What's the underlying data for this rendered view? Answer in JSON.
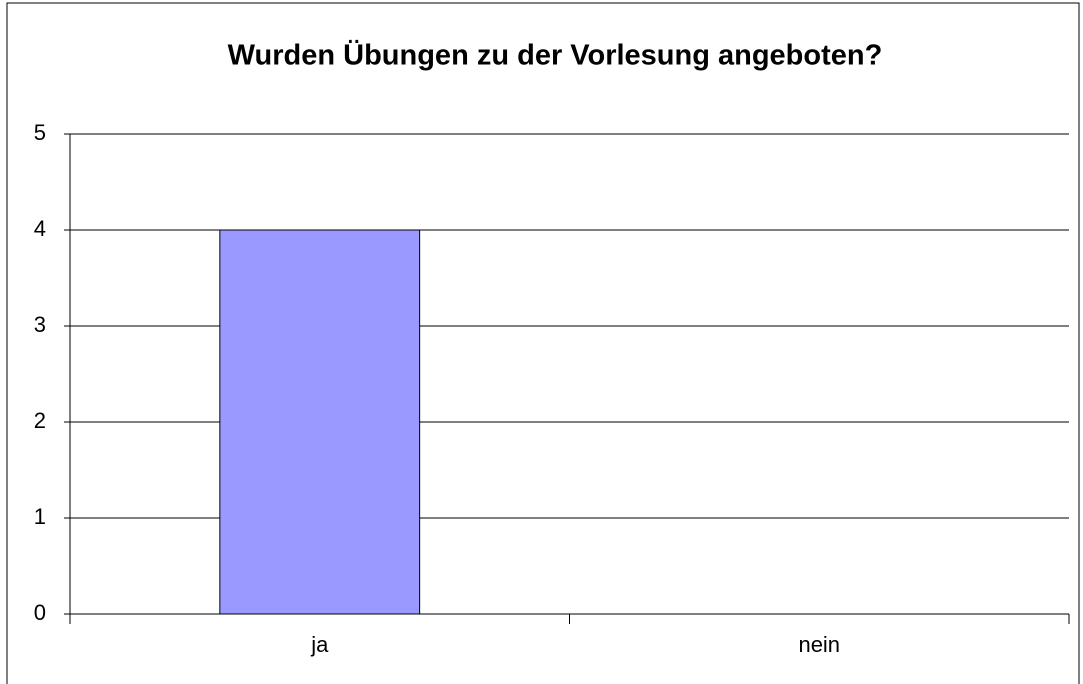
{
  "chart_data": {
    "type": "bar",
    "title": "Wurden Übungen zu der Vorlesung angeboten?",
    "categories": [
      "ja",
      "nein"
    ],
    "values": [
      4,
      0
    ],
    "color": "#9999ff",
    "ylim": [
      0,
      5
    ],
    "yticks": [
      0,
      1,
      2,
      3,
      4,
      5
    ],
    "grid": true
  }
}
